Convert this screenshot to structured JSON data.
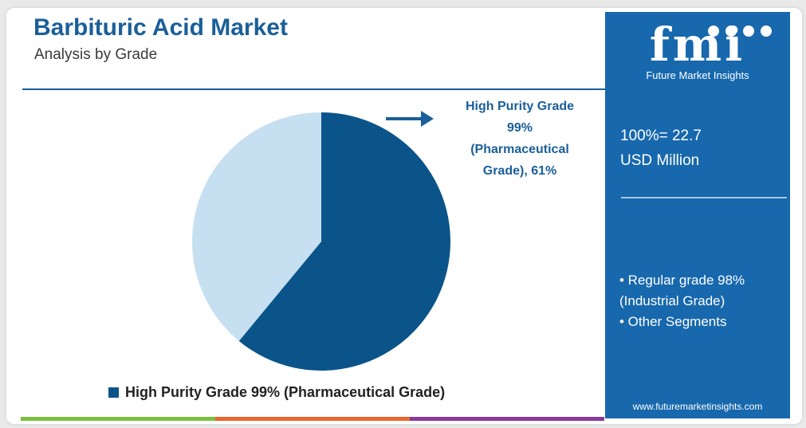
{
  "header": {
    "title": "Barbituric Acid Market",
    "subtitle": "Analysis by Grade"
  },
  "chart_data": {
    "type": "pie",
    "slices": [
      {
        "label": "High Purity Grade 99% (Pharmaceutical Grade)",
        "value": 61,
        "color": "#0b5489"
      },
      {
        "label": "",
        "value": 39,
        "color": "#c6e0f2"
      }
    ],
    "callout": {
      "lines": [
        "High Purity Grade",
        "99%",
        "(Pharmaceutical",
        "Grade), 61%"
      ]
    },
    "legend": {
      "placement": "bottom",
      "label": "High Purity Grade 99% (Pharmaceutical Grade)"
    }
  },
  "panel": {
    "logo_text": "Future Market Insights",
    "total_line1": "100%= 22.7",
    "total_line2": "USD Million",
    "bullets": [
      "• Regular grade 98%",
      "(Industrial Grade)",
      "• Other Segments"
    ],
    "website": "www.futuremarketinsights.com"
  },
  "colors": {
    "brand_blue": "#1768ad",
    "title_blue": "#1a5f99",
    "bottom_bar": [
      "#7bbf3f",
      "#e8662f",
      "#8a3a9a"
    ]
  }
}
